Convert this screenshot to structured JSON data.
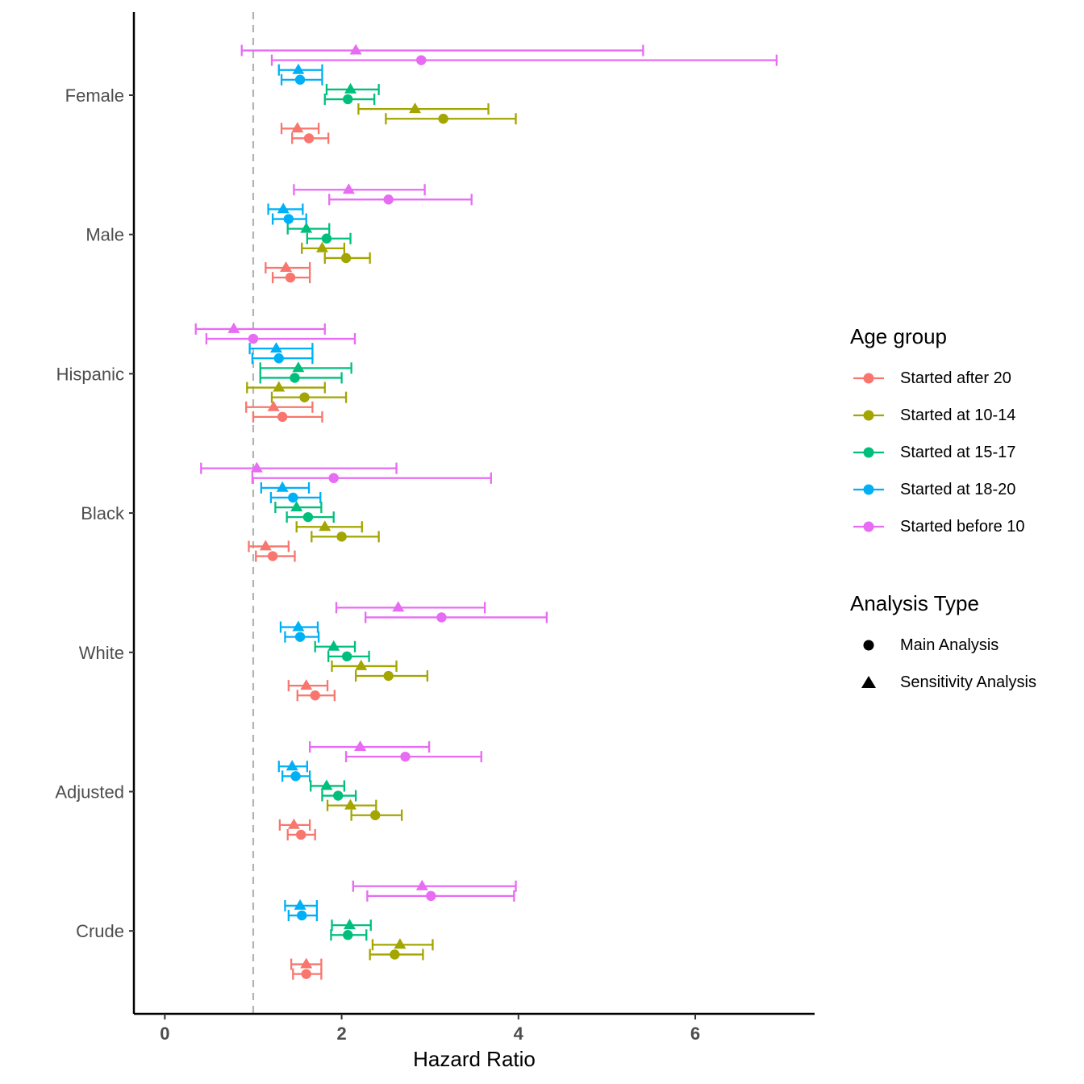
{
  "chart_data": {
    "type": "scatter",
    "subtype": "forest-plot",
    "title": "",
    "xlabel": "Hazard Ratio",
    "ylabel": "",
    "xlim": [
      -0.35,
      7.35
    ],
    "x_ticks": [
      0,
      2,
      4,
      6
    ],
    "x_tick_labels": [
      "0",
      "2",
      "4",
      "6"
    ],
    "reference_line": {
      "x": 1,
      "style": "dashed",
      "color": "#b3b3b3"
    },
    "grid": false,
    "categories": [
      "Female",
      "Male",
      "Hispanic",
      "Black",
      "White",
      "Adjusted",
      "Crude"
    ],
    "age_groups": [
      {
        "name": "Started after 20",
        "color": "#F8766D"
      },
      {
        "name": "Started at 10-14",
        "color": "#A3A500"
      },
      {
        "name": "Started at 15-17",
        "color": "#00BF7D"
      },
      {
        "name": "Started at 18-20",
        "color": "#00B0F6"
      },
      {
        "name": "Started before 10",
        "color": "#E76BF3"
      }
    ],
    "analysis_types": [
      {
        "name": "Main Analysis",
        "shape": "circle"
      },
      {
        "name": "Sensitivity Analysis",
        "shape": "triangle"
      }
    ],
    "legend": {
      "position": "right",
      "age_title": "Age group",
      "analysis_title": "Analysis Type"
    },
    "series": [
      {
        "category": "Female",
        "age": "Started before 10",
        "analysis": "Sensitivity Analysis",
        "hr": 2.16,
        "lo": 0.87,
        "hi": 5.41
      },
      {
        "category": "Female",
        "age": "Started before 10",
        "analysis": "Main Analysis",
        "hr": 2.9,
        "lo": 1.21,
        "hi": 6.92
      },
      {
        "category": "Female",
        "age": "Started at 18-20",
        "analysis": "Sensitivity Analysis",
        "hr": 1.51,
        "lo": 1.29,
        "hi": 1.78
      },
      {
        "category": "Female",
        "age": "Started at 18-20",
        "analysis": "Main Analysis",
        "hr": 1.53,
        "lo": 1.32,
        "hi": 1.78
      },
      {
        "category": "Female",
        "age": "Started at 15-17",
        "analysis": "Sensitivity Analysis",
        "hr": 2.1,
        "lo": 1.83,
        "hi": 2.42
      },
      {
        "category": "Female",
        "age": "Started at 15-17",
        "analysis": "Main Analysis",
        "hr": 2.07,
        "lo": 1.81,
        "hi": 2.37
      },
      {
        "category": "Female",
        "age": "Started at 10-14",
        "analysis": "Sensitivity Analysis",
        "hr": 2.83,
        "lo": 2.19,
        "hi": 3.66
      },
      {
        "category": "Female",
        "age": "Started at 10-14",
        "analysis": "Main Analysis",
        "hr": 3.15,
        "lo": 2.5,
        "hi": 3.97
      },
      {
        "category": "Female",
        "age": "Started after 20",
        "analysis": "Sensitivity Analysis",
        "hr": 1.5,
        "lo": 1.32,
        "hi": 1.74
      },
      {
        "category": "Female",
        "age": "Started after 20",
        "analysis": "Main Analysis",
        "hr": 1.63,
        "lo": 1.44,
        "hi": 1.85
      },
      {
        "category": "Male",
        "age": "Started before 10",
        "analysis": "Sensitivity Analysis",
        "hr": 2.08,
        "lo": 1.46,
        "hi": 2.94
      },
      {
        "category": "Male",
        "age": "Started before 10",
        "analysis": "Main Analysis",
        "hr": 2.53,
        "lo": 1.86,
        "hi": 3.47
      },
      {
        "category": "Male",
        "age": "Started at 18-20",
        "analysis": "Sensitivity Analysis",
        "hr": 1.34,
        "lo": 1.17,
        "hi": 1.56
      },
      {
        "category": "Male",
        "age": "Started at 18-20",
        "analysis": "Main Analysis",
        "hr": 1.4,
        "lo": 1.22,
        "hi": 1.6
      },
      {
        "category": "Male",
        "age": "Started at 15-17",
        "analysis": "Sensitivity Analysis",
        "hr": 1.6,
        "lo": 1.39,
        "hi": 1.86
      },
      {
        "category": "Male",
        "age": "Started at 15-17",
        "analysis": "Main Analysis",
        "hr": 1.83,
        "lo": 1.61,
        "hi": 2.1
      },
      {
        "category": "Male",
        "age": "Started at 10-14",
        "analysis": "Sensitivity Analysis",
        "hr": 1.78,
        "lo": 1.55,
        "hi": 2.03
      },
      {
        "category": "Male",
        "age": "Started at 10-14",
        "analysis": "Main Analysis",
        "hr": 2.05,
        "lo": 1.81,
        "hi": 2.32
      },
      {
        "category": "Male",
        "age": "Started after 20",
        "analysis": "Sensitivity Analysis",
        "hr": 1.37,
        "lo": 1.14,
        "hi": 1.64
      },
      {
        "category": "Male",
        "age": "Started after 20",
        "analysis": "Main Analysis",
        "hr": 1.42,
        "lo": 1.22,
        "hi": 1.64
      },
      {
        "category": "Hispanic",
        "age": "Started before 10",
        "analysis": "Sensitivity Analysis",
        "hr": 0.78,
        "lo": 0.35,
        "hi": 1.81
      },
      {
        "category": "Hispanic",
        "age": "Started before 10",
        "analysis": "Main Analysis",
        "hr": 1.0,
        "lo": 0.47,
        "hi": 2.15
      },
      {
        "category": "Hispanic",
        "age": "Started at 18-20",
        "analysis": "Sensitivity Analysis",
        "hr": 1.26,
        "lo": 0.96,
        "hi": 1.67
      },
      {
        "category": "Hispanic",
        "age": "Started at 18-20",
        "analysis": "Main Analysis",
        "hr": 1.29,
        "lo": 0.99,
        "hi": 1.67
      },
      {
        "category": "Hispanic",
        "age": "Started at 15-17",
        "analysis": "Sensitivity Analysis",
        "hr": 1.51,
        "lo": 1.08,
        "hi": 2.11
      },
      {
        "category": "Hispanic",
        "age": "Started at 15-17",
        "analysis": "Main Analysis",
        "hr": 1.47,
        "lo": 1.08,
        "hi": 2.0
      },
      {
        "category": "Hispanic",
        "age": "Started at 10-14",
        "analysis": "Sensitivity Analysis",
        "hr": 1.29,
        "lo": 0.93,
        "hi": 1.81
      },
      {
        "category": "Hispanic",
        "age": "Started at 10-14",
        "analysis": "Main Analysis",
        "hr": 1.58,
        "lo": 1.21,
        "hi": 2.05
      },
      {
        "category": "Hispanic",
        "age": "Started after 20",
        "analysis": "Sensitivity Analysis",
        "hr": 1.23,
        "lo": 0.92,
        "hi": 1.67
      },
      {
        "category": "Hispanic",
        "age": "Started after 20",
        "analysis": "Main Analysis",
        "hr": 1.33,
        "lo": 1.0,
        "hi": 1.78
      },
      {
        "category": "Black",
        "age": "Started before 10",
        "analysis": "Sensitivity Analysis",
        "hr": 1.04,
        "lo": 0.41,
        "hi": 2.62
      },
      {
        "category": "Black",
        "age": "Started before 10",
        "analysis": "Main Analysis",
        "hr": 1.91,
        "lo": 0.99,
        "hi": 3.69
      },
      {
        "category": "Black",
        "age": "Started at 18-20",
        "analysis": "Sensitivity Analysis",
        "hr": 1.33,
        "lo": 1.09,
        "hi": 1.63
      },
      {
        "category": "Black",
        "age": "Started at 18-20",
        "analysis": "Main Analysis",
        "hr": 1.45,
        "lo": 1.2,
        "hi": 1.76
      },
      {
        "category": "Black",
        "age": "Started at 15-17",
        "analysis": "Sensitivity Analysis",
        "hr": 1.49,
        "lo": 1.25,
        "hi": 1.77
      },
      {
        "category": "Black",
        "age": "Started at 15-17",
        "analysis": "Main Analysis",
        "hr": 1.62,
        "lo": 1.38,
        "hi": 1.91
      },
      {
        "category": "Black",
        "age": "Started at 10-14",
        "analysis": "Sensitivity Analysis",
        "hr": 1.81,
        "lo": 1.49,
        "hi": 2.23
      },
      {
        "category": "Black",
        "age": "Started at 10-14",
        "analysis": "Main Analysis",
        "hr": 2.0,
        "lo": 1.66,
        "hi": 2.42
      },
      {
        "category": "Black",
        "age": "Started after 20",
        "analysis": "Sensitivity Analysis",
        "hr": 1.14,
        "lo": 0.95,
        "hi": 1.4
      },
      {
        "category": "Black",
        "age": "Started after 20",
        "analysis": "Main Analysis",
        "hr": 1.22,
        "lo": 1.03,
        "hi": 1.47
      },
      {
        "category": "White",
        "age": "Started before 10",
        "analysis": "Sensitivity Analysis",
        "hr": 2.64,
        "lo": 1.94,
        "hi": 3.62
      },
      {
        "category": "White",
        "age": "Started before 10",
        "analysis": "Main Analysis",
        "hr": 3.13,
        "lo": 2.27,
        "hi": 4.32
      },
      {
        "category": "White",
        "age": "Started at 18-20",
        "analysis": "Sensitivity Analysis",
        "hr": 1.51,
        "lo": 1.31,
        "hi": 1.73
      },
      {
        "category": "White",
        "age": "Started at 18-20",
        "analysis": "Main Analysis",
        "hr": 1.53,
        "lo": 1.36,
        "hi": 1.74
      },
      {
        "category": "White",
        "age": "Started at 15-17",
        "analysis": "Sensitivity Analysis",
        "hr": 1.91,
        "lo": 1.7,
        "hi": 2.15
      },
      {
        "category": "White",
        "age": "Started at 15-17",
        "analysis": "Main Analysis",
        "hr": 2.06,
        "lo": 1.85,
        "hi": 2.31
      },
      {
        "category": "White",
        "age": "Started at 10-14",
        "analysis": "Sensitivity Analysis",
        "hr": 2.22,
        "lo": 1.89,
        "hi": 2.62
      },
      {
        "category": "White",
        "age": "Started at 10-14",
        "analysis": "Main Analysis",
        "hr": 2.53,
        "lo": 2.16,
        "hi": 2.97
      },
      {
        "category": "White",
        "age": "Started after 20",
        "analysis": "Sensitivity Analysis",
        "hr": 1.6,
        "lo": 1.4,
        "hi": 1.84
      },
      {
        "category": "White",
        "age": "Started after 20",
        "analysis": "Main Analysis",
        "hr": 1.7,
        "lo": 1.5,
        "hi": 1.92
      },
      {
        "category": "Adjusted",
        "age": "Started before 10",
        "analysis": "Sensitivity Analysis",
        "hr": 2.21,
        "lo": 1.64,
        "hi": 2.99
      },
      {
        "category": "Adjusted",
        "age": "Started before 10",
        "analysis": "Main Analysis",
        "hr": 2.72,
        "lo": 2.05,
        "hi": 3.58
      },
      {
        "category": "Adjusted",
        "age": "Started at 18-20",
        "analysis": "Sensitivity Analysis",
        "hr": 1.44,
        "lo": 1.29,
        "hi": 1.61
      },
      {
        "category": "Adjusted",
        "age": "Started at 18-20",
        "analysis": "Main Analysis",
        "hr": 1.48,
        "lo": 1.33,
        "hi": 1.64
      },
      {
        "category": "Adjusted",
        "age": "Started at 15-17",
        "analysis": "Sensitivity Analysis",
        "hr": 1.83,
        "lo": 1.65,
        "hi": 2.03
      },
      {
        "category": "Adjusted",
        "age": "Started at 15-17",
        "analysis": "Main Analysis",
        "hr": 1.96,
        "lo": 1.78,
        "hi": 2.16
      },
      {
        "category": "Adjusted",
        "age": "Started at 10-14",
        "analysis": "Sensitivity Analysis",
        "hr": 2.1,
        "lo": 1.84,
        "hi": 2.39
      },
      {
        "category": "Adjusted",
        "age": "Started at 10-14",
        "analysis": "Main Analysis",
        "hr": 2.38,
        "lo": 2.11,
        "hi": 2.68
      },
      {
        "category": "Adjusted",
        "age": "Started after 20",
        "analysis": "Sensitivity Analysis",
        "hr": 1.46,
        "lo": 1.3,
        "hi": 1.64
      },
      {
        "category": "Adjusted",
        "age": "Started after 20",
        "analysis": "Main Analysis",
        "hr": 1.54,
        "lo": 1.39,
        "hi": 1.7
      },
      {
        "category": "Crude",
        "age": "Started before 10",
        "analysis": "Sensitivity Analysis",
        "hr": 2.91,
        "lo": 2.13,
        "hi": 3.97
      },
      {
        "category": "Crude",
        "age": "Started before 10",
        "analysis": "Main Analysis",
        "hr": 3.01,
        "lo": 2.29,
        "hi": 3.95
      },
      {
        "category": "Crude",
        "age": "Started at 18-20",
        "analysis": "Sensitivity Analysis",
        "hr": 1.53,
        "lo": 1.36,
        "hi": 1.72
      },
      {
        "category": "Crude",
        "age": "Started at 18-20",
        "analysis": "Main Analysis",
        "hr": 1.55,
        "lo": 1.4,
        "hi": 1.72
      },
      {
        "category": "Crude",
        "age": "Started at 15-17",
        "analysis": "Sensitivity Analysis",
        "hr": 2.09,
        "lo": 1.89,
        "hi": 2.33
      },
      {
        "category": "Crude",
        "age": "Started at 15-17",
        "analysis": "Main Analysis",
        "hr": 2.07,
        "lo": 1.88,
        "hi": 2.28
      },
      {
        "category": "Crude",
        "age": "Started at 10-14",
        "analysis": "Sensitivity Analysis",
        "hr": 2.66,
        "lo": 2.35,
        "hi": 3.03
      },
      {
        "category": "Crude",
        "age": "Started at 10-14",
        "analysis": "Main Analysis",
        "hr": 2.6,
        "lo": 2.32,
        "hi": 2.92
      },
      {
        "category": "Crude",
        "age": "Started after 20",
        "analysis": "Sensitivity Analysis",
        "hr": 1.6,
        "lo": 1.43,
        "hi": 1.77
      },
      {
        "category": "Crude",
        "age": "Started after 20",
        "analysis": "Main Analysis",
        "hr": 1.6,
        "lo": 1.45,
        "hi": 1.77
      }
    ]
  }
}
